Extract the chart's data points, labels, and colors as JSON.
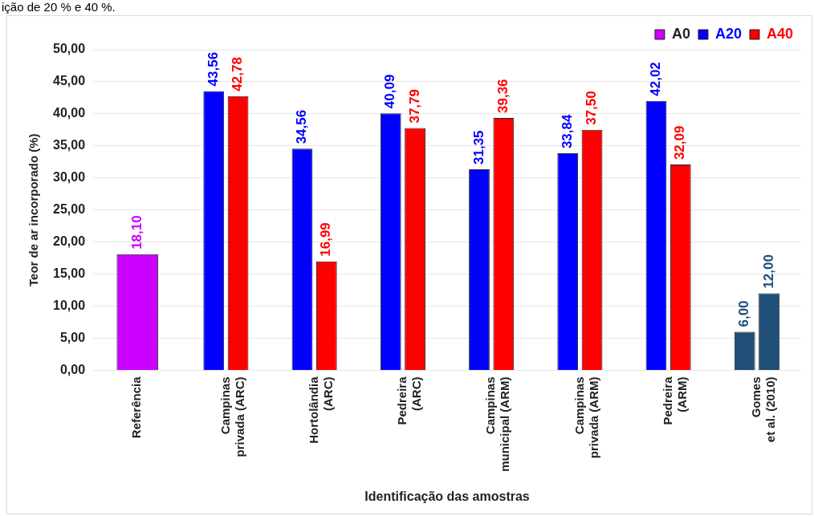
{
  "chart_data": {
    "type": "bar",
    "xlabel": "Identificação das amostras",
    "ylabel": "Teor de ar incorporado (%)",
    "annotations": [
      "ição de 20 % e 40 %."
    ],
    "categories": [
      "Referência",
      "Campinas\nprivada (ARC)",
      "Hortolândia\n(ARC)",
      "Pedreira\n(ARC)",
      "Campinas\nmunicipal (ARM)",
      "Campinas\nprivada (ARM)",
      "Pedreira\n(ARM)",
      "Gomes\net al. (2010)"
    ],
    "series": [
      {
        "name": "A0",
        "color": "#cc00ff",
        "values": [
          18.1,
          null,
          null,
          null,
          null,
          null,
          null,
          null
        ],
        "value_labels": [
          "18,10",
          null,
          null,
          null,
          null,
          null,
          null,
          null
        ]
      },
      {
        "name": "A20",
        "color": "#0000ff",
        "colors": [
          "#0000ff",
          "#0000ff",
          "#0000ff",
          "#0000ff",
          "#0000ff",
          "#0000ff",
          "#0000ff",
          "#1f4e79"
        ],
        "values": [
          null,
          43.56,
          34.56,
          40.09,
          31.35,
          33.84,
          42.02,
          6.0
        ],
        "value_labels": [
          null,
          "43,56",
          "34,56",
          "40,09",
          "31,35",
          "33,84",
          "42,02",
          "6,00"
        ]
      },
      {
        "name": "A40",
        "color": "#ff0000",
        "colors": [
          "#ff0000",
          "#ff0000",
          "#ff0000",
          "#ff0000",
          "#ff0000",
          "#ff0000",
          "#ff0000",
          "#1f4e79"
        ],
        "values": [
          null,
          42.78,
          16.99,
          37.79,
          39.36,
          37.5,
          32.09,
          12.0
        ],
        "value_labels": [
          null,
          "42,78",
          "16,99",
          "37,79",
          "39,36",
          "37,50",
          "32,09",
          "12,00"
        ]
      }
    ],
    "ylim": [
      0,
      50
    ],
    "yticks": [
      {
        "value": 0,
        "label": "0,00"
      },
      {
        "value": 5,
        "label": "5,00"
      },
      {
        "value": 10,
        "label": "10,00"
      },
      {
        "value": 15,
        "label": "15,00"
      },
      {
        "value": 20,
        "label": "20,00"
      },
      {
        "value": 25,
        "label": "25,00"
      },
      {
        "value": 30,
        "label": "30,00"
      },
      {
        "value": 35,
        "label": "35,00"
      },
      {
        "value": 40,
        "label": "40,00"
      },
      {
        "value": 45,
        "label": "45,00"
      },
      {
        "value": 50,
        "label": "50,00"
      }
    ],
    "grid": "y",
    "legend": "top right"
  }
}
